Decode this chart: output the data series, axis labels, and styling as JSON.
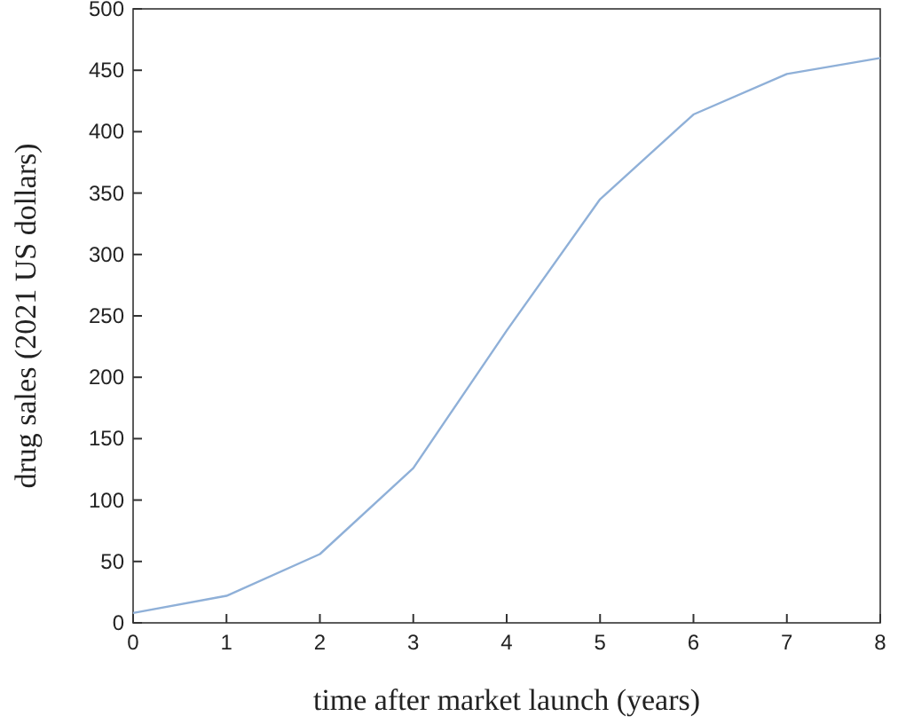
{
  "chart_data": {
    "type": "line",
    "xlabel": "time after market launch (years)",
    "ylabel": "drug sales (2021 US dollars)",
    "x": [
      0,
      1,
      2,
      3,
      4,
      5,
      6,
      7,
      8
    ],
    "series": [
      {
        "color": "#8fb0d8",
        "values": [
          8,
          22,
          56,
          126,
          238,
          345,
          414,
          447,
          460
        ]
      }
    ],
    "xlim": [
      0,
      8
    ],
    "xticks": [
      0,
      1,
      2,
      3,
      4,
      5,
      6,
      7,
      8
    ],
    "ylim": [
      0,
      500
    ],
    "yticks": [
      0,
      50,
      100,
      150,
      200,
      250,
      300,
      350,
      400,
      450,
      500
    ],
    "grid": false
  }
}
